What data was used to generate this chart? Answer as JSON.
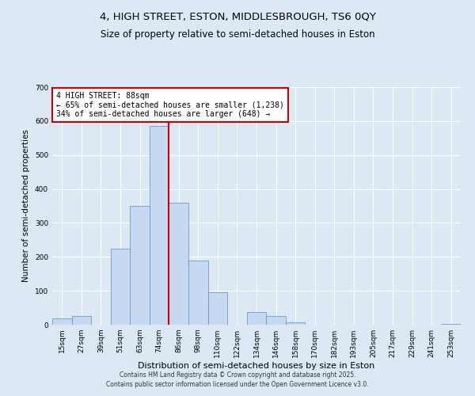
{
  "title1": "4, HIGH STREET, ESTON, MIDDLESBROUGH, TS6 0QY",
  "title2": "Size of property relative to semi-detached houses in Eston",
  "xlabel": "Distribution of semi-detached houses by size in Eston",
  "ylabel": "Number of semi-detached properties",
  "bar_labels": [
    "15sqm",
    "27sqm",
    "39sqm",
    "51sqm",
    "63sqm",
    "74sqm",
    "86sqm",
    "98sqm",
    "110sqm",
    "122sqm",
    "134sqm",
    "146sqm",
    "158sqm",
    "170sqm",
    "182sqm",
    "193sqm",
    "205sqm",
    "217sqm",
    "229sqm",
    "241sqm",
    "253sqm"
  ],
  "bar_values": [
    18,
    25,
    0,
    225,
    350,
    585,
    360,
    190,
    95,
    0,
    38,
    25,
    8,
    0,
    0,
    0,
    0,
    0,
    0,
    0,
    3
  ],
  "bar_color": "#c6d9f0",
  "bar_edge_color": "#5b8dc8",
  "vline_color": "#cc0000",
  "annotation_title": "4 HIGH STREET: 88sqm",
  "annotation_line1": "← 65% of semi-detached houses are smaller (1,238)",
  "annotation_line2": "34% of semi-detached houses are larger (648) →",
  "annotation_box_edgecolor": "#cc0000",
  "ylim": [
    0,
    700
  ],
  "yticks": [
    0,
    100,
    200,
    300,
    400,
    500,
    600,
    700
  ],
  "background_color": "#dce9f5",
  "plot_bg_color": "#dce9f5",
  "footer1": "Contains HM Land Registry data © Crown copyright and database right 2025.",
  "footer2": "Contains public sector information licensed under the Open Government Licence v3.0.",
  "title1_fontsize": 9.5,
  "title2_fontsize": 8.5,
  "xlabel_fontsize": 8,
  "ylabel_fontsize": 7.5,
  "tick_fontsize": 6.5,
  "ann_fontsize": 7,
  "footer_fontsize": 5.5
}
